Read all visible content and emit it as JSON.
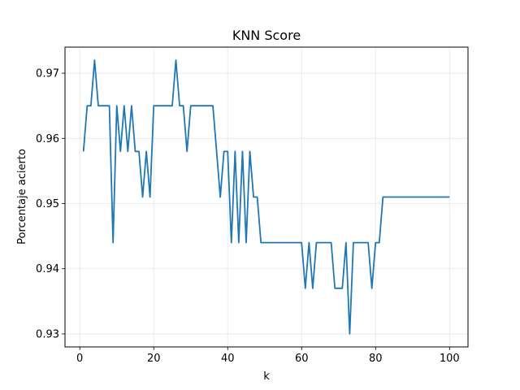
{
  "chart_data": {
    "type": "line",
    "title": "KNN Score",
    "xlabel": "k",
    "ylabel": "Porcentaje acierto",
    "xlim": [
      -4,
      105
    ],
    "ylim": [
      0.928,
      0.974
    ],
    "xticks": [
      0,
      20,
      40,
      60,
      80,
      100
    ],
    "yticks": [
      0.93,
      0.94,
      0.95,
      0.96,
      0.97
    ],
    "xtick_labels": [
      "0",
      "20",
      "40",
      "60",
      "80",
      "100"
    ],
    "ytick_labels": [
      "0.93",
      "0.94",
      "0.95",
      "0.96",
      "0.97"
    ],
    "grid": true,
    "series": [
      {
        "color": "#1f77b4",
        "x": [
          1,
          2,
          3,
          4,
          5,
          6,
          7,
          8,
          9,
          10,
          11,
          12,
          13,
          14,
          15,
          16,
          17,
          18,
          19,
          20,
          21,
          22,
          23,
          24,
          25,
          26,
          27,
          28,
          29,
          30,
          31,
          32,
          33,
          34,
          35,
          36,
          37,
          38,
          39,
          40,
          41,
          42,
          43,
          44,
          45,
          46,
          47,
          48,
          49,
          50,
          51,
          52,
          53,
          54,
          55,
          56,
          57,
          58,
          59,
          60,
          61,
          62,
          63,
          64,
          65,
          66,
          67,
          68,
          69,
          70,
          71,
          72,
          73,
          74,
          75,
          76,
          77,
          78,
          79,
          80,
          81,
          82,
          83,
          84,
          85,
          86,
          87,
          88,
          89,
          90,
          91,
          92,
          93,
          94,
          95,
          96,
          97,
          98,
          99,
          100
        ],
        "y": [
          0.958,
          0.965,
          0.965,
          0.972,
          0.965,
          0.965,
          0.965,
          0.965,
          0.944,
          0.965,
          0.958,
          0.965,
          0.958,
          0.965,
          0.958,
          0.958,
          0.951,
          0.958,
          0.951,
          0.965,
          0.965,
          0.965,
          0.965,
          0.965,
          0.965,
          0.972,
          0.965,
          0.965,
          0.958,
          0.965,
          0.965,
          0.965,
          0.965,
          0.965,
          0.965,
          0.965,
          0.958,
          0.951,
          0.958,
          0.958,
          0.944,
          0.958,
          0.944,
          0.958,
          0.944,
          0.958,
          0.951,
          0.951,
          0.944,
          0.944,
          0.944,
          0.944,
          0.944,
          0.944,
          0.944,
          0.944,
          0.944,
          0.944,
          0.944,
          0.944,
          0.937,
          0.944,
          0.937,
          0.944,
          0.944,
          0.944,
          0.944,
          0.944,
          0.937,
          0.937,
          0.937,
          0.944,
          0.93,
          0.944,
          0.944,
          0.944,
          0.944,
          0.944,
          0.937,
          0.944,
          0.944,
          0.951,
          0.951,
          0.951,
          0.951,
          0.951,
          0.951,
          0.951,
          0.951,
          0.951,
          0.951,
          0.951,
          0.951,
          0.951,
          0.951,
          0.951,
          0.951,
          0.951,
          0.951,
          0.951
        ]
      }
    ]
  }
}
